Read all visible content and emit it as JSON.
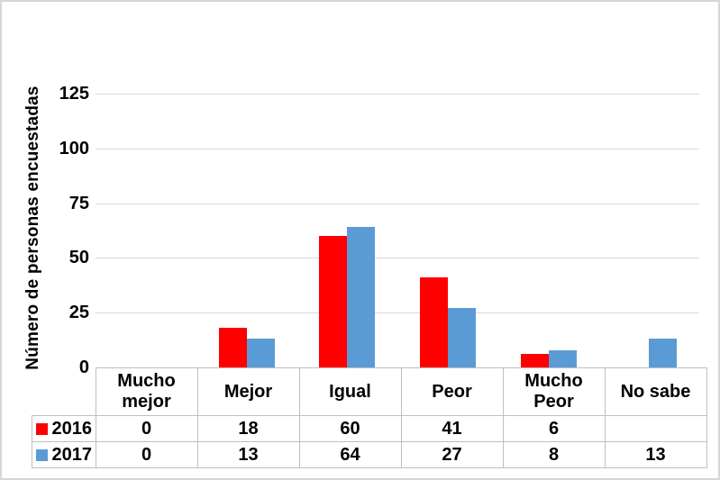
{
  "chart_data": {
    "type": "bar",
    "title": "",
    "xlabel": "",
    "ylabel": "Número de personas encuestadas",
    "categories": [
      "Mucho mejor",
      "Mejor",
      "Igual",
      "Peor",
      "Mucho Peor",
      "No sabe"
    ],
    "series": [
      {
        "name": "2016",
        "color": "#FF0000",
        "values": [
          0,
          18,
          60,
          41,
          6,
          null
        ],
        "table_cells": [
          "0",
          "18",
          "60",
          "41",
          "6",
          ""
        ]
      },
      {
        "name": "2017",
        "color": "#5B9BD5",
        "values": [
          0,
          13,
          64,
          27,
          8,
          13
        ],
        "table_cells": [
          "0",
          "13",
          "64",
          "27",
          "8",
          "13"
        ]
      }
    ],
    "yticks": [
      "0",
      "25",
      "50",
      "75",
      "100",
      "125"
    ],
    "ylim": [
      0,
      125
    ],
    "grid": "horizontal",
    "legend_position": "data-table-left",
    "colors": {
      "gridline": "#D9D9D9",
      "table_border": "#BFBFBF",
      "chart_border": "#D7D7D7",
      "text": "#000000",
      "background": "#FFFFFF"
    }
  }
}
